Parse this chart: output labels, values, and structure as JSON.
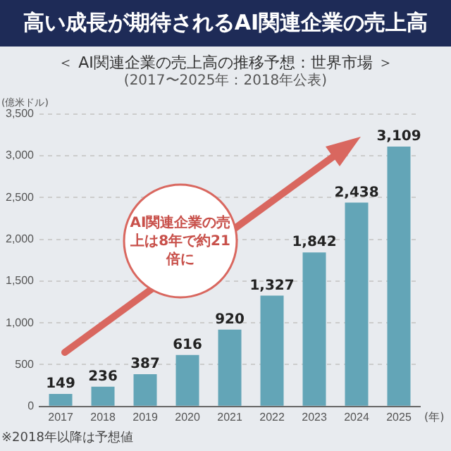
{
  "chart_data": {
    "type": "bar",
    "title": "高い成長が期待されるAI関連企業の売上高",
    "subtitle": "＜ AI関連企業の売上高の推移予想：世界市場 ＞\n(2017〜2025年：2018年公表)",
    "ylabel": "(億米ドル)",
    "xlabel": "(年)",
    "categories": [
      "2017",
      "2018",
      "2019",
      "2020",
      "2021",
      "2022",
      "2023",
      "2024",
      "2025"
    ],
    "values": [
      149,
      236,
      387,
      616,
      920,
      1327,
      1842,
      2438,
      3109
    ],
    "color": "#63a5b7",
    "ylim": [
      0,
      3500
    ],
    "yticks": [
      {
        "value": 0,
        "label": "0"
      },
      {
        "value": 500,
        "label": "500"
      },
      {
        "value": 1000,
        "label": "1,000"
      },
      {
        "value": 1500,
        "label": "1,500"
      },
      {
        "value": 2000,
        "label": "2,000"
      },
      {
        "value": 2500,
        "label": "2,500"
      },
      {
        "value": 3000,
        "label": "3,000"
      },
      {
        "value": 3500,
        "label": "3,500"
      }
    ],
    "value_labels": [
      "149",
      "236",
      "387",
      "616",
      "920",
      "1,327",
      "1,842",
      "2,438",
      "3,109"
    ],
    "grid": "y",
    "legend": false,
    "annotations": [
      "AI関連企業の売上は8年で約21倍に",
      "※2018年以降は予想値"
    ]
  }
}
